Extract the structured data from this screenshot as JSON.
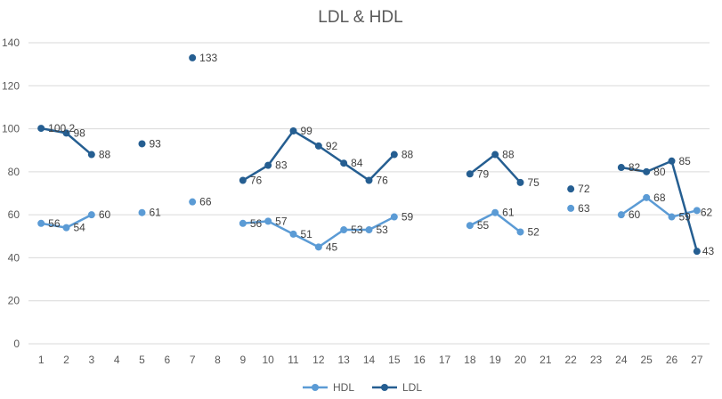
{
  "chart_data": {
    "type": "line",
    "title": "LDL & HDL",
    "xlabel": "",
    "ylabel": "",
    "ylim": [
      0,
      140
    ],
    "yticks": [
      0,
      20,
      40,
      60,
      80,
      100,
      120,
      140
    ],
    "categories": [
      "1",
      "2",
      "3",
      "4",
      "5",
      "6",
      "7",
      "8",
      "9",
      "10",
      "11",
      "12",
      "13",
      "14",
      "15",
      "16",
      "17",
      "18",
      "19",
      "20",
      "21",
      "22",
      "23",
      "24",
      "25",
      "26",
      "27"
    ],
    "grid": true,
    "legend": "bottom",
    "series": [
      {
        "name": "HDL",
        "color": "#5b9bd5",
        "values": [
          56,
          54,
          60,
          null,
          61,
          null,
          66,
          null,
          56,
          57,
          51,
          45,
          53,
          53,
          59,
          null,
          null,
          55,
          61,
          52,
          null,
          63,
          null,
          60,
          68,
          59,
          62
        ],
        "labels": [
          "56",
          "54",
          "60",
          null,
          "61",
          null,
          "66",
          null,
          "56",
          "57",
          "51",
          "45",
          "53",
          "53",
          "59",
          null,
          null,
          "55",
          "61",
          "52",
          null,
          "63",
          null,
          "60",
          "68",
          "59",
          "62"
        ]
      },
      {
        "name": "LDL",
        "color": "#255e91",
        "values": [
          100.2,
          98,
          88,
          null,
          93,
          null,
          133,
          null,
          76,
          83,
          99,
          92,
          84,
          76,
          88,
          null,
          null,
          79,
          88,
          75,
          null,
          72,
          null,
          82,
          80,
          85,
          43
        ],
        "labels": [
          "100,2",
          "98",
          "88",
          null,
          "93",
          null,
          "133",
          null,
          "76",
          "83",
          "99",
          "92",
          "84",
          "76",
          "88",
          null,
          null,
          "79",
          "88",
          "75",
          null,
          "72",
          null,
          "82",
          "80",
          "85",
          "43"
        ]
      }
    ]
  }
}
